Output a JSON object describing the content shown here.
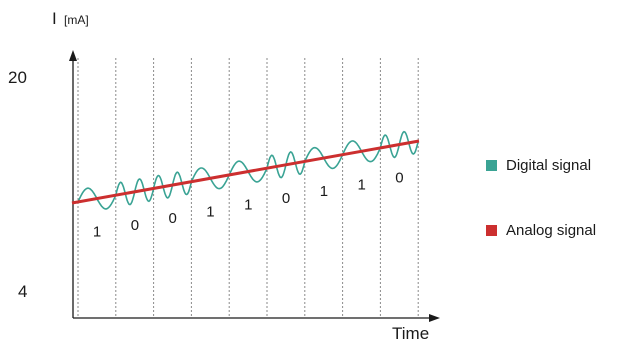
{
  "chart_data": {
    "type": "line",
    "y_axis_label": "I",
    "y_axis_unit": "[mA]",
    "x_axis_label": "Time",
    "y_tick_labels": [
      "20",
      "4"
    ],
    "bits": [
      "1",
      "0",
      "0",
      "1",
      "1",
      "0",
      "1",
      "1",
      "0"
    ],
    "series": [
      {
        "name": "Digital signal",
        "color": "#3aa394"
      },
      {
        "name": "Analog signal",
        "color": "#cc2f2f"
      }
    ]
  }
}
